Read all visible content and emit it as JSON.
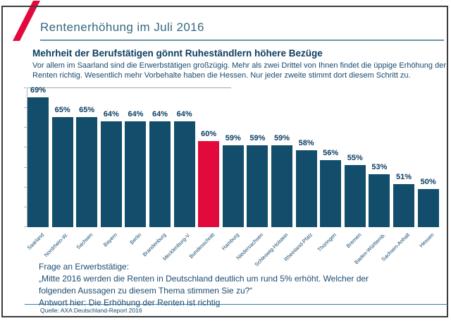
{
  "header": {
    "title": "Rentenerhöhung im Juli 2016"
  },
  "headline": "Mehrheit der Berufstätigen gönnt Ruheständlern höhere Bezüge",
  "subtitle": "Vor allem im Saarland sind die Erwerbstätigen großzügig. Mehr als zwei Drittel von Ihnen findet die üppige Erhöhung der Renten richtig. Wesentlich mehr Vorbehalte haben die Hessen. Nur jeder zweite stimmt dort diesem Schritt zu.",
  "chart_data": {
    "type": "bar",
    "categories": [
      "Saarland",
      "Nordrhein-W.",
      "Sachsen",
      "Bayern",
      "Berlin",
      "Brandenburg",
      "Mecklenburg-V.",
      "Bundesschnitt",
      "Hamburg",
      "Niedersachsen",
      "Schleswig-Holstein",
      "Rheinland-Pfalz",
      "Thüringen",
      "Bremen",
      "Baden-Württemb.",
      "Sachsen-Anhalt",
      "Hessen"
    ],
    "values": [
      69,
      65,
      65,
      64,
      64,
      64,
      64,
      60,
      59,
      59,
      59,
      58,
      56,
      55,
      53,
      51,
      50
    ],
    "unit": "%",
    "highlight_index": 7,
    "bar_color": "#124e6b",
    "highlight_color": "#e20a3d",
    "title": "Mehrheit der Berufstätigen gönnt Ruheständlern höhere Bezüge",
    "xlabel": "",
    "ylabel": "",
    "ylim": [
      42,
      71
    ],
    "grid": false,
    "legend": "none",
    "data_labels": true
  },
  "footer": {
    "lines": [
      "Frage an Erwerbstätige:",
      "„Mitte 2016 werden die Renten in Deutschland deutlich um rund 5% erhöht. Welcher der",
      "folgenden Aussagen zu diesem Thema stimmen Sie zu?“",
      "Antwort hier: Die Erhöhung der Renten ist richtig"
    ]
  },
  "source": "Quelle: AXA Deutschland-Report 2016",
  "colors": {
    "accent_red": "#e20a3d",
    "bar_navy": "#124e6b",
    "title_blue": "#33687f",
    "text_navy": "#0b3e63"
  }
}
